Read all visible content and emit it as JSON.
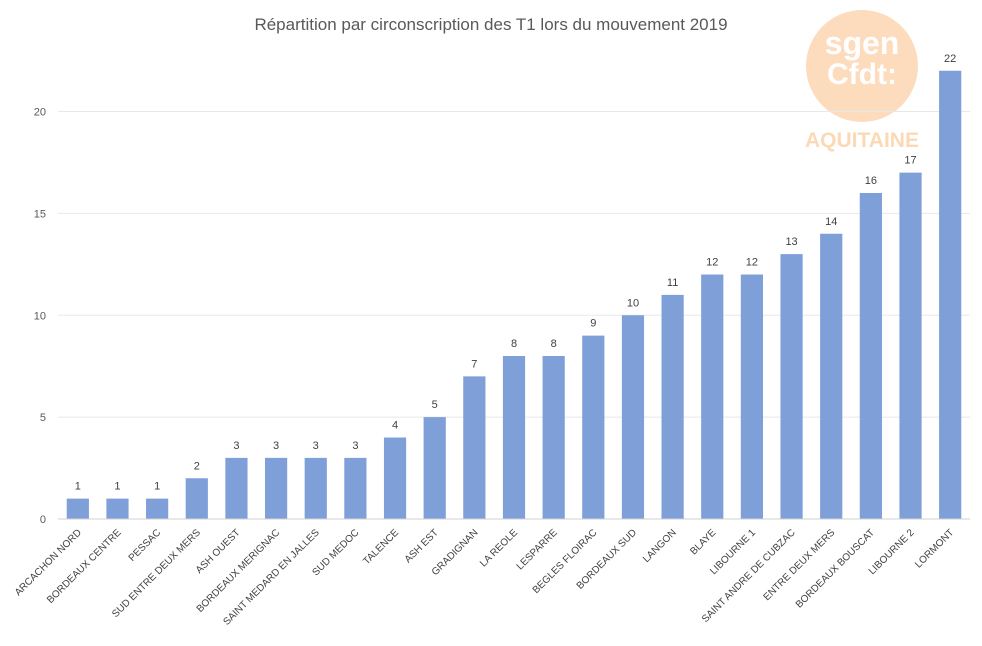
{
  "chart_data": {
    "type": "bar",
    "title": "Répartition par circonscription des T1 lors du mouvement 2019",
    "xlabel": "",
    "ylabel": "",
    "ylim": [
      0,
      22
    ],
    "yticks": [
      0,
      5,
      10,
      15,
      20
    ],
    "grid": true,
    "legend": "none",
    "bar_color": "#7F9FD8",
    "categories": [
      "ARCACHON NORD",
      "BORDEAUX CENTRE",
      "PESSAC",
      "SUD ENTRE DEUX MERS",
      "ASH OUEST",
      "BORDEAUX MERIGNAC",
      "SAINT MEDARD EN JALLES",
      "SUD MEDOC",
      "TALENCE",
      "ASH EST",
      "GRADIGNAN",
      "LA REOLE",
      "LESPARRE",
      "BEGLES FLOIRAC",
      "BORDEAUX SUD",
      "LANGON",
      "BLAYE",
      "LIBOURNE 1",
      "SAINT ANDRE DE CUBZAC",
      "ENTRE DEUX MERS",
      "BORDEAUX BOUSCAT",
      "LIBOURNE 2",
      "LORMONT"
    ],
    "values": [
      1,
      1,
      1,
      2,
      3,
      3,
      3,
      3,
      4,
      5,
      7,
      8,
      8,
      9,
      10,
      11,
      12,
      12,
      13,
      14,
      16,
      17,
      22
    ]
  },
  "logo": {
    "line1": "sgen",
    "line2": "Cfdt:",
    "region": "AQUITAINE",
    "color": "#FDDCBD",
    "region_color": "#FCD9B6"
  }
}
